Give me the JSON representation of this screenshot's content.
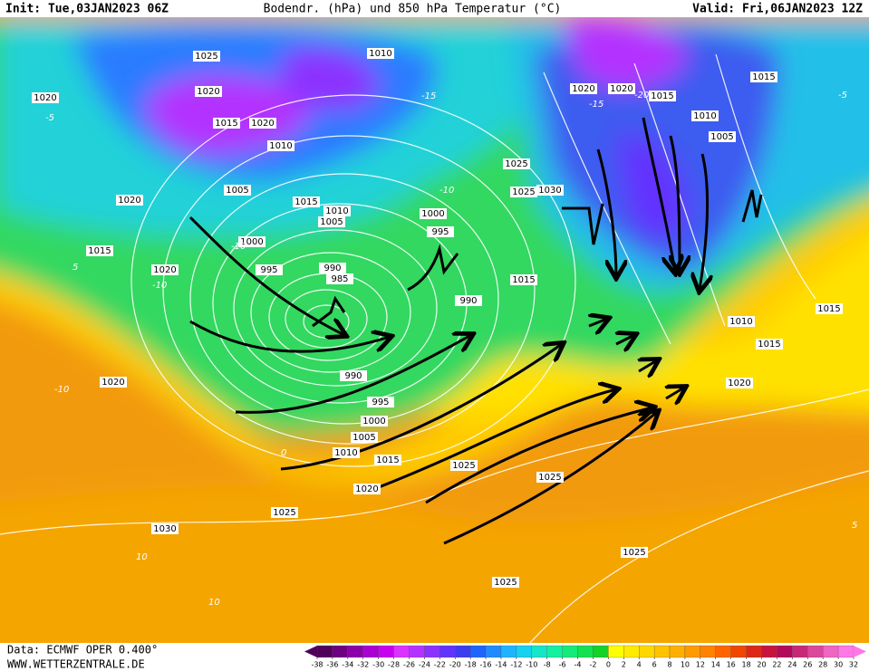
{
  "header": {
    "init": "Init: Tue,03JAN2023 06Z",
    "title": "Bodendr. (hPa) und 850 hPa Temperatur (°C)",
    "valid": "Valid: Fri,06JAN2023 12Z"
  },
  "footer": {
    "source": "Data: ECMWF OPER 0.400°",
    "site": "WWW.WETTERZENTRALE.DE"
  },
  "map": {
    "isobar_labels": [
      1025,
      1010,
      1020,
      1020,
      1015,
      1020,
      1010,
      1005,
      1015,
      1010,
      1005,
      1000,
      1000,
      995,
      995,
      990,
      985,
      990,
      990,
      995,
      1000,
      1005,
      1010,
      1015,
      1020,
      1025,
      1030,
      1025,
      1025,
      1025,
      1025,
      1020,
      1020,
      1015,
      1020,
      1025,
      1025,
      1030,
      1015,
      1020,
      1020,
      1015,
      1010,
      1005,
      1015,
      1010,
      1015,
      1020,
      1015
    ],
    "temperature_labels": [
      -5,
      -10,
      -15,
      -10,
      -20,
      -15,
      -10,
      5,
      0,
      -10,
      10,
      10,
      5,
      -5
    ]
  },
  "colorbar": {
    "ticks": [
      -38,
      -36,
      -34,
      -32,
      -30,
      -28,
      -26,
      -24,
      -22,
      -20,
      -18,
      -16,
      -14,
      -12,
      -10,
      -8,
      -6,
      -4,
      -2,
      0,
      2,
      4,
      6,
      8,
      10,
      12,
      14,
      16,
      18,
      20,
      22,
      24,
      26,
      28,
      30,
      32
    ],
    "colors": [
      "#50005a",
      "#6e0082",
      "#8c00aa",
      "#aa00d2",
      "#c800f0",
      "#dc32ff",
      "#b432ff",
      "#8c32ff",
      "#6432ff",
      "#3c3cf0",
      "#1e64ff",
      "#1e8cff",
      "#1eb4ff",
      "#14d2f0",
      "#14e6c8",
      "#14f0a0",
      "#14eb78",
      "#14e150",
      "#14d228",
      "#ffff00",
      "#ffeb00",
      "#ffd700",
      "#ffc300",
      "#ffaf00",
      "#ff9b00",
      "#ff8200",
      "#ff6400",
      "#f04600",
      "#dc2814",
      "#c8143c",
      "#b40a5a",
      "#c82878",
      "#dc469b",
      "#f064c3",
      "#ff78e6"
    ]
  }
}
